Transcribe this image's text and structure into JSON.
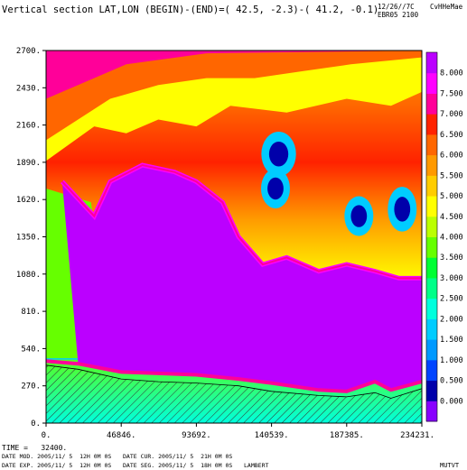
{
  "header": {
    "title": "Vertical section LAT,LON (BEGIN)-(END)=( 42.5, -2.3)-( 41.2, -0.1)",
    "meta_line1": "12/26//7C",
    "meta_right": "CvHHeMae",
    "meta_line2": "EBR05 2100"
  },
  "footer": {
    "time": "TIME =   32400.",
    "date_mod": "DATE MOD. 2005/11/ 5  12H 0M 0S",
    "date_cur": "DATE CUR. 2005/11/ 5  21H 0M 0S",
    "date_exp": "DATE EXP. 2005/11/ 5  12H 0M 0S",
    "date_seg": "DATE SEG. 2005/11/ 5  18H 0M 0S",
    "projection": "LAMBERT",
    "field": "MUTVT"
  },
  "chart_data": {
    "type": "heatmap",
    "title": "Vertical section LAT,LON (BEGIN)-(END)=( 42.5, -2.3)-( 41.2, -0.1)",
    "xlabel": "",
    "ylabel": "",
    "xlim": [
      0,
      234231
    ],
    "ylim": [
      0,
      2700
    ],
    "x_ticks": [
      "0.",
      "46846.",
      "93692.",
      "140539.",
      "187385.",
      "234231."
    ],
    "y_ticks": [
      "0.",
      "270.",
      "540.",
      "810.",
      "1080.",
      "1350.",
      "1620.",
      "1890.",
      "2160.",
      "2430.",
      "2700."
    ],
    "colorbar": {
      "labels": [
        "0.000",
        "0.500",
        "1.000",
        "1.500",
        "2.000",
        "2.500",
        "3.000",
        "3.500",
        "4.000",
        "4.500",
        "5.000",
        "5.500",
        "6.000",
        "6.500",
        "7.000",
        "7.500",
        "8.000"
      ],
      "colors": [
        "#8800ff",
        "#0000aa",
        "#0044ff",
        "#0099ff",
        "#00ccff",
        "#00ffdd",
        "#00ff88",
        "#00ff33",
        "#66ff00",
        "#bbff00",
        "#ffff00",
        "#ffcc00",
        "#ff9900",
        "#ff6600",
        "#ff2200",
        "#ff0099",
        "#ff00ff",
        "#bb00ff"
      ]
    },
    "terrain_profile": [
      [
        0,
        420
      ],
      [
        20000,
        390
      ],
      [
        46846,
        320
      ],
      [
        70000,
        300
      ],
      [
        93692,
        290
      ],
      [
        120000,
        270
      ],
      [
        140539,
        230
      ],
      [
        170000,
        200
      ],
      [
        187385,
        190
      ],
      [
        205000,
        220
      ],
      [
        215000,
        180
      ],
      [
        234231,
        250
      ]
    ],
    "low_level_boundary": [
      [
        0,
        450
      ],
      [
        20000,
        430
      ],
      [
        46846,
        370
      ],
      [
        70000,
        360
      ],
      [
        93692,
        350
      ],
      [
        120000,
        320
      ],
      [
        140539,
        290
      ],
      [
        170000,
        240
      ],
      [
        187385,
        230
      ],
      [
        205000,
        300
      ],
      [
        215000,
        240
      ],
      [
        234231,
        300
      ]
    ],
    "high_value_core_top": [
      [
        10000,
        1750
      ],
      [
        30000,
        1500
      ],
      [
        40000,
        1750
      ],
      [
        60000,
        1870
      ],
      [
        80000,
        1820
      ],
      [
        93692,
        1750
      ],
      [
        110000,
        1600
      ],
      [
        120000,
        1350
      ],
      [
        135000,
        1150
      ],
      [
        150000,
        1200
      ],
      [
        170000,
        1100
      ],
      [
        187385,
        1150
      ],
      [
        205000,
        1100
      ],
      [
        220000,
        1050
      ],
      [
        234231,
        1050
      ]
    ],
    "lower_isolines": [
      {
        "level": 2.0,
        "points": [
          [
            0,
            1500
          ],
          [
            20000,
            1200
          ],
          [
            25000,
            600
          ],
          [
            30000,
            460
          ]
        ]
      },
      {
        "level": 4.0,
        "points": [
          [
            0,
            1700
          ],
          [
            28000,
            1600
          ],
          [
            32000,
            1250
          ],
          [
            35000,
            800
          ],
          [
            37000,
            470
          ]
        ]
      }
    ],
    "upper_isolines": [
      {
        "level": 5.0,
        "points": [
          [
            0,
            1900
          ],
          [
            30000,
            2150
          ],
          [
            50000,
            2100
          ],
          [
            70000,
            2200
          ],
          [
            93692,
            2150
          ],
          [
            115000,
            2300
          ],
          [
            150000,
            2250
          ],
          [
            187385,
            2350
          ],
          [
            215000,
            2300
          ],
          [
            234231,
            2400
          ]
        ]
      },
      {
        "level": 6.5,
        "points": [
          [
            0,
            2050
          ],
          [
            40000,
            2350
          ],
          [
            70000,
            2450
          ],
          [
            100000,
            2500
          ],
          [
            130000,
            2500
          ],
          [
            160000,
            2550
          ],
          [
            190000,
            2600
          ],
          [
            234231,
            2650
          ]
        ]
      },
      {
        "level": 7.5,
        "points": [
          [
            0,
            2350
          ],
          [
            50000,
            2600
          ],
          [
            100000,
            2680
          ],
          [
            234231,
            2700
          ]
        ]
      }
    ],
    "low_value_pockets": [
      {
        "x": 145000,
        "y": 1950,
        "rx": 6000,
        "ry": 90,
        "level": 0.5
      },
      {
        "x": 143000,
        "y": 1700,
        "rx": 5000,
        "ry": 80,
        "level": 0.5
      },
      {
        "x": 195000,
        "y": 1500,
        "rx": 5000,
        "ry": 80,
        "level": 0.5
      },
      {
        "x": 222000,
        "y": 1550,
        "rx": 5000,
        "ry": 90,
        "level": 0.5
      }
    ]
  }
}
